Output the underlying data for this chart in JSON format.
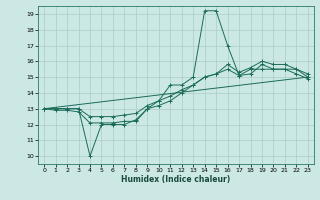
{
  "title": "",
  "xlabel": "Humidex (Indice chaleur)",
  "ylabel": "",
  "xlim": [
    -0.5,
    23.5
  ],
  "ylim": [
    9.5,
    19.5
  ],
  "yticks": [
    10,
    11,
    12,
    13,
    14,
    15,
    16,
    17,
    18,
    19
  ],
  "xticks": [
    0,
    1,
    2,
    3,
    4,
    5,
    6,
    7,
    8,
    9,
    10,
    11,
    12,
    13,
    14,
    15,
    16,
    17,
    18,
    19,
    20,
    21,
    22,
    23
  ],
  "bg_color": "#cce8e4",
  "line_color": "#1a6b5a",
  "grid_color": "#aaccc8",
  "lines": [
    {
      "x": [
        0,
        1,
        2,
        3,
        4,
        5,
        6,
        7,
        8,
        9,
        10,
        11,
        12,
        13,
        14,
        15,
        16,
        17,
        18,
        19,
        20,
        21,
        22,
        23
      ],
      "y": [
        13,
        13,
        13,
        13,
        10,
        12,
        12,
        12,
        12.3,
        13,
        13.5,
        14.5,
        14.5,
        15,
        19.2,
        19.2,
        17,
        15.1,
        15.2,
        15.8,
        15.5,
        15.5,
        15.5,
        15
      ],
      "marker": "+"
    },
    {
      "x": [
        0,
        1,
        2,
        3,
        4,
        5,
        6,
        7,
        8,
        9,
        10,
        11,
        12,
        13,
        14,
        15,
        16,
        17,
        18,
        19,
        20,
        21,
        22,
        23
      ],
      "y": [
        13,
        12.9,
        12.9,
        12.8,
        12.1,
        12.1,
        12.1,
        12.2,
        12.2,
        13,
        13.2,
        13.5,
        14,
        14.5,
        15,
        15.2,
        15.5,
        15.1,
        15.5,
        15.5,
        15.5,
        15.5,
        15.2,
        14.9
      ],
      "marker": "+"
    },
    {
      "x": [
        0,
        1,
        2,
        3,
        4,
        5,
        6,
        7,
        8,
        9,
        10,
        11,
        12,
        13,
        14,
        15,
        16,
        17,
        18,
        19,
        20,
        21,
        22,
        23
      ],
      "y": [
        13,
        13,
        13,
        13,
        12.5,
        12.5,
        12.5,
        12.6,
        12.7,
        13.2,
        13.5,
        13.8,
        14.2,
        14.5,
        15,
        15.2,
        15.8,
        15.3,
        15.6,
        16,
        15.8,
        15.8,
        15.5,
        15.2
      ],
      "marker": "+"
    },
    {
      "x": [
        0,
        23
      ],
      "y": [
        13,
        15
      ],
      "marker": null
    }
  ]
}
